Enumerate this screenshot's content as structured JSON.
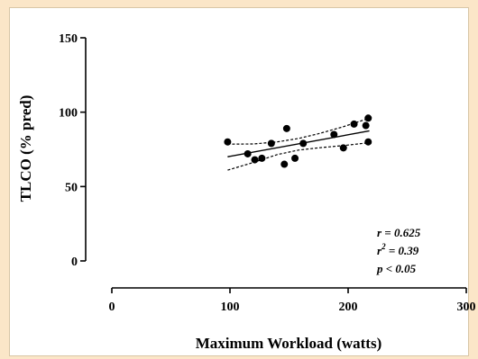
{
  "chart_data": {
    "type": "scatter",
    "xlabel": "Maximum Workload (watts)",
    "ylabel": "TLCO (% pred)",
    "xlim": [
      0,
      300
    ],
    "ylim": [
      0,
      150
    ],
    "xticks": [
      "0",
      "100",
      "200",
      "300"
    ],
    "yticks": [
      "0",
      "50",
      "100",
      "150"
    ],
    "grid": false,
    "points": [
      {
        "x": 98,
        "y": 80
      },
      {
        "x": 115,
        "y": 72
      },
      {
        "x": 121,
        "y": 68
      },
      {
        "x": 127,
        "y": 69
      },
      {
        "x": 135,
        "y": 79
      },
      {
        "x": 146,
        "y": 65
      },
      {
        "x": 148,
        "y": 89
      },
      {
        "x": 155,
        "y": 69
      },
      {
        "x": 162,
        "y": 79
      },
      {
        "x": 188,
        "y": 85
      },
      {
        "x": 196,
        "y": 76
      },
      {
        "x": 205,
        "y": 92
      },
      {
        "x": 215,
        "y": 91
      },
      {
        "x": 217,
        "y": 96
      },
      {
        "x": 217,
        "y": 80
      }
    ],
    "regression": {
      "x_range": [
        98,
        218
      ],
      "slope": 0.145,
      "intercept": 55.8
    },
    "confidence_band": {
      "x": [
        98,
        120,
        140,
        158,
        175,
        195,
        218
      ],
      "upper": [
        78.5,
        78.6,
        80.0,
        82.3,
        85.5,
        90.0,
        96.0
      ],
      "lower": [
        61.0,
        66.2,
        71.5,
        74.5,
        76.0,
        77.5,
        79.5
      ]
    },
    "annotations": {
      "r": "r = 0.625",
      "r2_prefix": "r",
      "r2_exp": "2",
      "r2_suffix": " = 0.39",
      "p": "p < 0.05"
    }
  }
}
